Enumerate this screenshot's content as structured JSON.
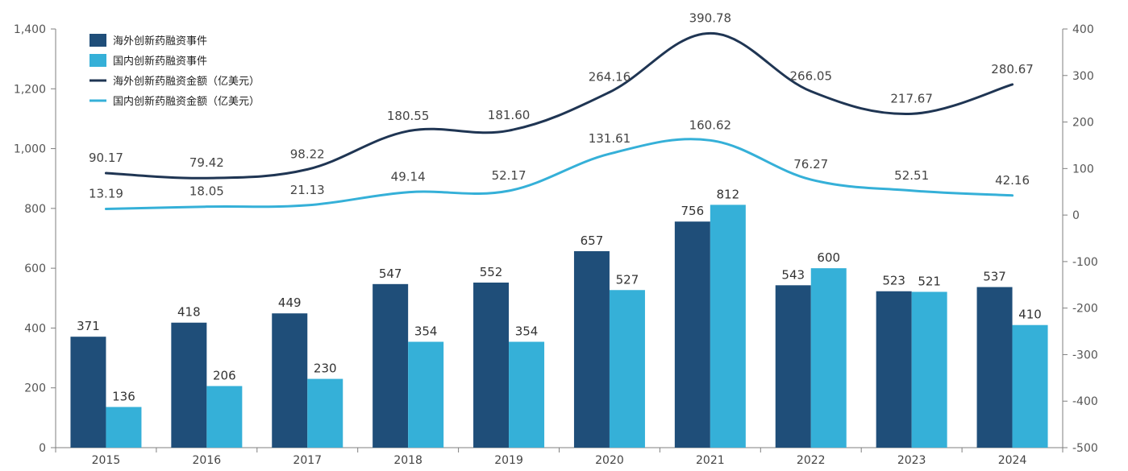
{
  "chart_data": {
    "type": "bar",
    "categories": [
      "2015",
      "2016",
      "2017",
      "2018",
      "2019",
      "2020",
      "2021",
      "2022",
      "2023",
      "2024"
    ],
    "series": [
      {
        "name": "海外创新药融资事件",
        "kind": "bar",
        "axis": "left",
        "color": "#1f4e79",
        "values": [
          371,
          418,
          449,
          547,
          552,
          657,
          756,
          543,
          523,
          537
        ]
      },
      {
        "name": "国内创新药融资事件",
        "kind": "bar",
        "axis": "left",
        "color": "#35b0d8",
        "values": [
          136,
          206,
          230,
          354,
          354,
          527,
          812,
          600,
          521,
          410
        ]
      },
      {
        "name": "海外创新药融资金额（亿美元）",
        "kind": "line",
        "axis": "right",
        "color": "#1f3553",
        "values": [
          90.17,
          79.42,
          98.22,
          180.55,
          181.6,
          264.16,
          390.78,
          266.05,
          217.67,
          280.67
        ]
      },
      {
        "name": "国内创新药融资金额（亿美元）",
        "kind": "line",
        "axis": "right",
        "color": "#35b0d8",
        "values": [
          13.19,
          18.05,
          21.13,
          49.14,
          52.17,
          131.61,
          160.62,
          76.27,
          52.51,
          42.16
        ]
      }
    ],
    "left_axis": {
      "min": 0,
      "max": 1400,
      "ticks": [
        "0",
        "200",
        "400",
        "600",
        "800",
        "1,000",
        "1,200",
        "1,400"
      ]
    },
    "right_axis": {
      "min": -500,
      "max": 400,
      "ticks": [
        "-500",
        "-400",
        "-300",
        "-200",
        "-100",
        "0",
        "100",
        "200",
        "300",
        "400"
      ]
    },
    "legend_position": "top-left",
    "grid": false
  }
}
